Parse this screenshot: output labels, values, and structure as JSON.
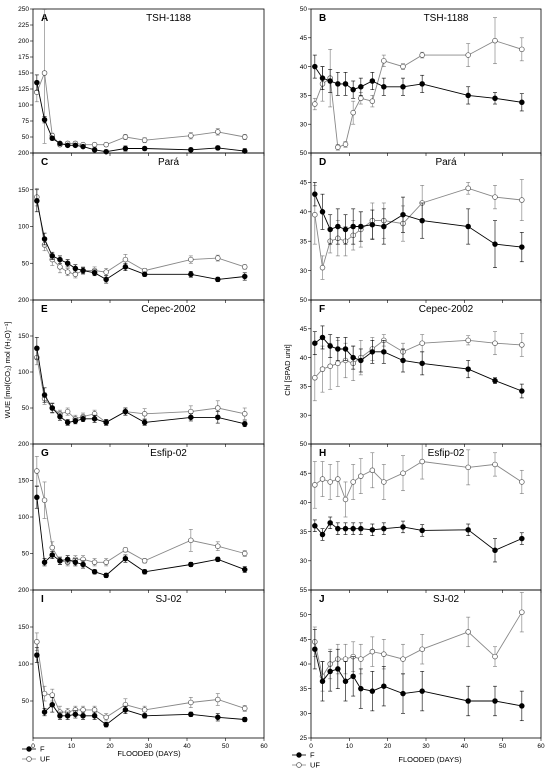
{
  "figure": {
    "ylabel_left": "WUE [mol(CO₂) mol (H₂O)⁻¹]",
    "ylabel_right": "Chl [SPAD unit]",
    "xlabel": "FLOODED (DAYS)",
    "legend": [
      {
        "symbol": "filled-circle",
        "label": "F"
      },
      {
        "symbol": "open-circle",
        "label": "UF"
      }
    ]
  },
  "chart_data": [
    {
      "type": "line",
      "letter": "A",
      "title": "TSH-1188",
      "xlim": [
        0,
        60
      ],
      "ylim": [
        25,
        250
      ],
      "x_ticks": [
        0,
        10,
        20,
        30,
        40,
        50,
        60
      ],
      "y_ticks": [
        25,
        50,
        75,
        100,
        125,
        150,
        175,
        200,
        225,
        250
      ],
      "y_tick_labels": [
        "25",
        "50",
        "75",
        "100",
        "125",
        "150",
        "175",
        "200",
        "225",
        "250"
      ],
      "x": [
        1,
        3,
        5,
        7,
        9,
        11,
        13,
        16,
        19,
        24,
        29,
        41,
        48,
        55
      ],
      "series": [
        {
          "name": "F",
          "values": [
            135,
            77,
            48,
            40,
            37,
            37,
            35,
            30,
            27,
            32,
            32,
            30,
            33,
            28
          ],
          "errors": [
            12,
            5,
            3,
            2,
            2,
            2,
            2,
            3,
            3,
            4,
            3,
            3,
            3,
            4
          ]
        },
        {
          "name": "UF",
          "values": [
            120,
            150,
            52,
            38,
            40,
            40,
            38,
            38,
            38,
            50,
            45,
            52,
            58,
            50
          ],
          "errors": [
            15,
            110,
            4,
            3,
            3,
            3,
            3,
            3,
            3,
            4,
            4,
            5,
            5,
            4
          ]
        }
      ]
    },
    {
      "type": "line",
      "letter": "B",
      "title": "TSH-1188",
      "xlim": [
        0,
        60
      ],
      "ylim": [
        25,
        50
      ],
      "x_ticks": [
        0,
        10,
        20,
        30,
        40,
        50,
        60
      ],
      "y_ticks": [
        25,
        30,
        35,
        40,
        45,
        50
      ],
      "y_tick_labels": [
        "25",
        "30",
        "35",
        "40",
        "45",
        "50"
      ],
      "x": [
        1,
        3,
        5,
        7,
        9,
        11,
        13,
        16,
        19,
        24,
        29,
        41,
        48,
        55
      ],
      "series": [
        {
          "name": "F",
          "values": [
            40,
            38,
            37.5,
            37,
            37,
            36,
            36.5,
            37.5,
            36.5,
            36.5,
            37,
            35,
            34.5,
            33.8
          ],
          "errors": [
            2,
            2,
            2,
            2,
            2,
            1.5,
            1.5,
            1.5,
            1.5,
            1.5,
            1.5,
            1.5,
            1,
            1.5
          ]
        },
        {
          "name": "UF",
          "values": [
            33.5,
            37,
            38,
            26,
            26.5,
            32,
            34.5,
            34,
            41,
            40,
            42,
            42,
            44.5,
            43
          ],
          "errors": [
            1,
            3,
            5,
            0.5,
            0.5,
            2,
            1,
            1,
            1,
            0.5,
            0.5,
            2,
            4,
            2
          ]
        }
      ]
    },
    {
      "type": "line",
      "letter": "C",
      "title": "Pará",
      "xlim": [
        0,
        60
      ],
      "ylim": [
        0,
        200
      ],
      "x_ticks": [
        0,
        10,
        20,
        30,
        40,
        50,
        60
      ],
      "y_ticks": [
        50,
        100,
        150,
        200
      ],
      "y_tick_labels": [
        "50",
        "100",
        "150",
        "200"
      ],
      "x": [
        1,
        3,
        5,
        7,
        9,
        11,
        13,
        16,
        19,
        24,
        29,
        41,
        48,
        55
      ],
      "series": [
        {
          "name": "F",
          "values": [
            135,
            83,
            60,
            55,
            50,
            43,
            40,
            37,
            28,
            45,
            35,
            35,
            28,
            32
          ],
          "errors": [
            15,
            8,
            5,
            5,
            5,
            5,
            4,
            4,
            5,
            5,
            3,
            4,
            3,
            5
          ]
        },
        {
          "name": "UF",
          "values": [
            140,
            75,
            55,
            45,
            38,
            35,
            40,
            40,
            38,
            55,
            40,
            55,
            57,
            45
          ],
          "errors": [
            12,
            8,
            8,
            8,
            5,
            5,
            5,
            5,
            5,
            7,
            3,
            5,
            4,
            3
          ]
        }
      ]
    },
    {
      "type": "line",
      "letter": "D",
      "title": "Pará",
      "xlim": [
        0,
        60
      ],
      "ylim": [
        25,
        50
      ],
      "x_ticks": [
        0,
        10,
        20,
        30,
        40,
        50,
        60
      ],
      "y_ticks": [
        25,
        30,
        35,
        40,
        45,
        50
      ],
      "y_tick_labels": [
        "25",
        "30",
        "35",
        "40",
        "45",
        "50"
      ],
      "x": [
        1,
        3,
        5,
        7,
        9,
        11,
        13,
        16,
        19,
        24,
        29,
        41,
        48,
        55
      ],
      "series": [
        {
          "name": "F",
          "values": [
            43,
            40,
            37,
            37.5,
            37,
            37.5,
            37.5,
            37.8,
            37.5,
            39.5,
            38.5,
            37.5,
            34.5,
            34
          ],
          "errors": [
            2,
            3,
            2.5,
            3,
            2.5,
            3,
            2.5,
            2.5,
            3,
            3,
            3,
            3,
            4,
            2.5
          ]
        },
        {
          "name": "UF",
          "values": [
            39.5,
            30.5,
            35,
            35.5,
            35,
            36,
            37,
            38.5,
            38.5,
            38,
            41.5,
            44,
            42.5,
            42
          ],
          "errors": [
            5,
            2,
            2,
            3,
            2.5,
            2.5,
            3,
            3,
            3,
            3,
            3,
            1,
            2,
            3.5
          ]
        }
      ]
    },
    {
      "type": "line",
      "letter": "E",
      "title": "Cepec-2002",
      "xlim": [
        0,
        60
      ],
      "ylim": [
        0,
        200
      ],
      "x_ticks": [
        0,
        10,
        20,
        30,
        40,
        50,
        60
      ],
      "y_ticks": [
        50,
        100,
        150,
        200
      ],
      "y_tick_labels": [
        "50",
        "100",
        "150",
        "200"
      ],
      "x": [
        1,
        3,
        5,
        7,
        9,
        11,
        13,
        16,
        19,
        24,
        29,
        41,
        48,
        55
      ],
      "series": [
        {
          "name": "F",
          "values": [
            133,
            68,
            50,
            38,
            30,
            32,
            35,
            35,
            30,
            45,
            30,
            37,
            37,
            28
          ],
          "errors": [
            15,
            10,
            6,
            5,
            4,
            4,
            4,
            5,
            4,
            5,
            4,
            5,
            8,
            4
          ]
        },
        {
          "name": "UF",
          "values": [
            120,
            63,
            50,
            42,
            45,
            35,
            38,
            42,
            30,
            45,
            42,
            45,
            50,
            42
          ],
          "errors": [
            10,
            8,
            7,
            5,
            5,
            5,
            5,
            5,
            4,
            5,
            7,
            8,
            10,
            8
          ]
        }
      ]
    },
    {
      "type": "line",
      "letter": "F",
      "title": "Cepec-2002",
      "xlim": [
        0,
        60
      ],
      "ylim": [
        25,
        50
      ],
      "x_ticks": [
        0,
        10,
        20,
        30,
        40,
        50,
        60
      ],
      "y_ticks": [
        25,
        30,
        35,
        40,
        45,
        50
      ],
      "y_tick_labels": [
        "25",
        "30",
        "35",
        "40",
        "45",
        "50"
      ],
      "x": [
        1,
        3,
        5,
        7,
        9,
        11,
        13,
        16,
        19,
        24,
        29,
        41,
        48,
        55
      ],
      "series": [
        {
          "name": "F",
          "values": [
            42.5,
            43.5,
            42,
            41.5,
            41.5,
            40,
            39.5,
            41,
            41,
            39.5,
            39,
            38,
            36,
            34.2
          ],
          "errors": [
            2,
            2,
            2,
            2,
            2,
            2,
            2,
            2,
            2,
            2,
            2,
            1.5,
            0.5,
            1.2
          ]
        },
        {
          "name": "UF",
          "values": [
            36.5,
            38,
            38.5,
            39,
            39.5,
            39,
            40,
            41.5,
            43,
            41,
            42.5,
            43,
            42.5,
            42.2
          ],
          "errors": [
            4,
            4,
            4,
            4,
            3,
            3,
            3,
            2,
            1,
            1.5,
            1.5,
            0.8,
            2,
            2
          ]
        }
      ]
    },
    {
      "type": "line",
      "letter": "G",
      "title": "Esfip-02",
      "xlim": [
        0,
        60
      ],
      "ylim": [
        0,
        200
      ],
      "x_ticks": [
        0,
        10,
        20,
        30,
        40,
        50,
        60
      ],
      "y_ticks": [
        50,
        100,
        150,
        200
      ],
      "y_tick_labels": [
        "50",
        "100",
        "150",
        "200"
      ],
      "x": [
        1,
        3,
        5,
        7,
        9,
        11,
        13,
        16,
        19,
        24,
        29,
        41,
        48,
        55
      ],
      "series": [
        {
          "name": "F",
          "values": [
            127,
            38,
            48,
            40,
            42,
            38,
            35,
            25,
            20,
            43,
            25,
            35,
            42,
            28
          ],
          "errors": [
            15,
            5,
            5,
            5,
            5,
            5,
            5,
            3,
            3,
            5,
            3,
            3,
            3,
            4
          ]
        },
        {
          "name": "UF",
          "values": [
            163,
            123,
            58,
            40,
            38,
            42,
            42,
            38,
            38,
            55,
            40,
            68,
            60,
            50
          ],
          "errors": [
            20,
            25,
            8,
            5,
            5,
            5,
            5,
            5,
            5,
            3,
            3,
            15,
            6,
            4
          ]
        }
      ]
    },
    {
      "type": "line",
      "letter": "H",
      "title": "Esfip-02",
      "xlim": [
        0,
        60
      ],
      "ylim": [
        25,
        50
      ],
      "x_ticks": [
        0,
        10,
        20,
        30,
        40,
        50,
        60
      ],
      "y_ticks": [
        25,
        30,
        35,
        40,
        45,
        50
      ],
      "y_tick_labels": [
        "25",
        "30",
        "35",
        "40",
        "45",
        "50"
      ],
      "x": [
        1,
        3,
        5,
        7,
        9,
        11,
        13,
        16,
        19,
        24,
        29,
        41,
        48,
        55
      ],
      "series": [
        {
          "name": "F",
          "values": [
            36,
            34.5,
            36.5,
            35.5,
            35.5,
            35.5,
            35.5,
            35.3,
            35.5,
            35.8,
            35.2,
            35.3,
            31.8,
            33.8
          ],
          "errors": [
            1,
            1,
            1,
            1,
            1,
            1,
            1,
            1,
            1,
            1,
            1,
            1,
            2,
            1
          ]
        },
        {
          "name": "UF",
          "values": [
            43,
            44,
            43.5,
            44,
            40.5,
            43.5,
            44.5,
            45.5,
            43.5,
            45,
            47,
            46,
            46.5,
            43.5
          ],
          "errors": [
            4,
            3,
            3,
            3,
            3,
            3,
            3,
            3,
            3,
            3,
            3,
            3,
            2,
            2
          ]
        }
      ]
    },
    {
      "type": "line",
      "letter": "I",
      "title": "SJ-02",
      "xlim": [
        0,
        60
      ],
      "ylim": [
        0,
        200
      ],
      "x_ticks": [
        0,
        10,
        20,
        30,
        40,
        50,
        60
      ],
      "y_ticks": [
        50,
        100,
        150,
        200
      ],
      "y_tick_labels": [
        "50",
        "100",
        "150",
        "200"
      ],
      "x": [
        1,
        3,
        5,
        7,
        9,
        11,
        13,
        16,
        19,
        24,
        29,
        41,
        48,
        55
      ],
      "series": [
        {
          "name": "F",
          "values": [
            112,
            35,
            45,
            30,
            30,
            32,
            30,
            30,
            18,
            38,
            30,
            32,
            28,
            25
          ],
          "errors": [
            10,
            5,
            10,
            5,
            5,
            5,
            5,
            5,
            3,
            5,
            3,
            3,
            5,
            3
          ]
        },
        {
          "name": "UF",
          "values": [
            130,
            60,
            58,
            35,
            35,
            38,
            38,
            38,
            28,
            45,
            38,
            48,
            52,
            40
          ],
          "errors": [
            12,
            10,
            8,
            8,
            5,
            5,
            5,
            5,
            5,
            8,
            5,
            7,
            8,
            4
          ]
        }
      ]
    },
    {
      "type": "line",
      "letter": "J",
      "title": "SJ-02",
      "xlim": [
        0,
        60
      ],
      "ylim": [
        25,
        55
      ],
      "x_ticks": [
        0,
        10,
        20,
        30,
        40,
        50,
        60
      ],
      "y_ticks": [
        25,
        30,
        35,
        40,
        45,
        50,
        55
      ],
      "y_tick_labels": [
        "25",
        "30",
        "35",
        "40",
        "45",
        "50",
        "55"
      ],
      "x": [
        1,
        3,
        5,
        7,
        9,
        11,
        13,
        16,
        19,
        24,
        29,
        41,
        48,
        55
      ],
      "series": [
        {
          "name": "F",
          "values": [
            43,
            36.5,
            38.5,
            39,
            36.5,
            37.5,
            35,
            34.5,
            35.5,
            34,
            34.5,
            32.5,
            32.5,
            31.5
          ],
          "errors": [
            4,
            4,
            4,
            4,
            4,
            4,
            4,
            4,
            4,
            4,
            4,
            3,
            3,
            3
          ]
        },
        {
          "name": "UF",
          "values": [
            44.5,
            37.5,
            40,
            41,
            41,
            41.5,
            41,
            42.5,
            42,
            41,
            43,
            46.5,
            41.5,
            50.5
          ],
          "errors": [
            3,
            3,
            3,
            3,
            3,
            3,
            3,
            3,
            3,
            3,
            3,
            3,
            2,
            4
          ]
        }
      ]
    }
  ]
}
